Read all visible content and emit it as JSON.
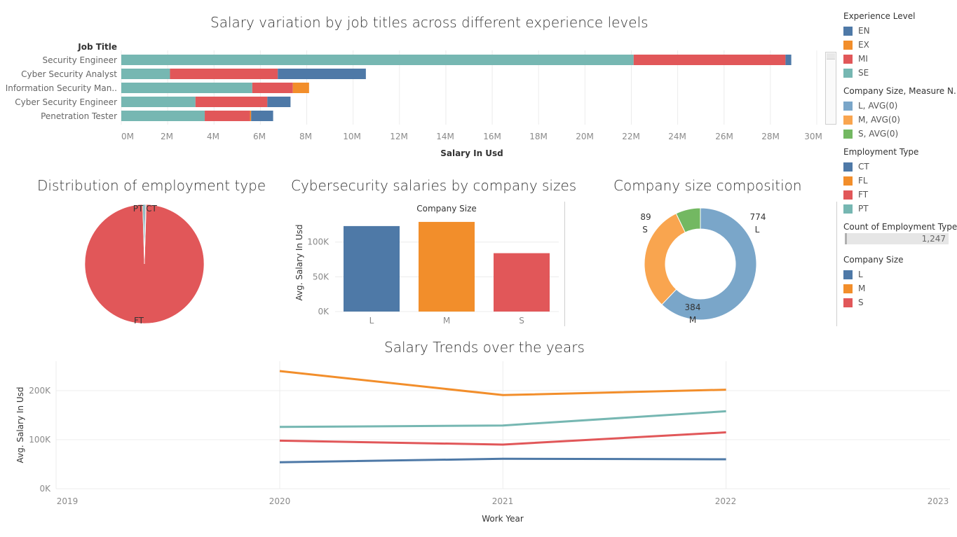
{
  "colors": {
    "EN": "#4e79a7",
    "EX": "#f28e2b",
    "MI": "#e15759",
    "SE": "#76b7b2",
    "company_L": "#7aa6c9",
    "company_M": "#f9a54f",
    "company_S": "#73b862",
    "grid": "#ececec"
  },
  "titles": {
    "salary_variation": "Salary variation by job titles across different experience levels",
    "employment_distribution": "Distribution of employment type",
    "company_salaries": "Cybersecurity salaries by company sizes",
    "company_composition": "Company size composition",
    "salary_trends": "Salary Trends over the years"
  },
  "legends": {
    "experience": {
      "title": "Experience Level",
      "items": [
        "EN",
        "EX",
        "MI",
        "SE"
      ]
    },
    "company_measure": {
      "title": "Company Size, Measure N..",
      "items": [
        "L, AVG(0)",
        "M, AVG(0)",
        "S, AVG(0)"
      ]
    },
    "employment": {
      "title": "Employment Type",
      "items": [
        "CT",
        "FL",
        "FT",
        "PT"
      ]
    },
    "count": {
      "title": "Count of Employment Type",
      "value": "1,247"
    },
    "company_size": {
      "title": "Company Size",
      "items": [
        "L",
        "M",
        "S"
      ]
    }
  },
  "chart_data": [
    {
      "id": "salary_variation",
      "type": "bar",
      "orientation": "horizontal",
      "stacked": true,
      "title": "Salary variation by job titles across different experience levels",
      "row_header": "Job Title",
      "xlabel": "Salary In Usd",
      "categories": [
        "Security Engineer",
        "Cyber Security Analyst",
        "Information Security Man..",
        "Cyber Security Engineer",
        "Penetration Tester"
      ],
      "series": [
        {
          "name": "SE",
          "values": [
            22100000,
            2100000,
            5650000,
            3200000,
            3600000
          ]
        },
        {
          "name": "MI",
          "values": [
            6550000,
            4650000,
            1750000,
            3100000,
            1950000
          ]
        },
        {
          "name": "EX",
          "values": [
            0,
            0,
            700000,
            0,
            50000
          ]
        },
        {
          "name": "EN",
          "values": [
            250000,
            3800000,
            0,
            1000000,
            950000
          ]
        }
      ],
      "xticks": [
        "0M",
        "2M",
        "4M",
        "6M",
        "8M",
        "10M",
        "12M",
        "14M",
        "16M",
        "18M",
        "20M",
        "22M",
        "24M",
        "26M",
        "28M",
        "30M"
      ],
      "xlim": [
        0,
        30000000
      ]
    },
    {
      "id": "employment_distribution",
      "type": "pie",
      "title": "Distribution of employment type",
      "labels": [
        "FT",
        "PT",
        "CT",
        "FL"
      ],
      "values": [
        1235,
        6,
        4,
        2
      ]
    },
    {
      "id": "company_salaries",
      "type": "bar",
      "title": "Cybersecurity salaries by company sizes",
      "header": "Company Size",
      "ylabel": "Avg. Salary In Usd",
      "categories": [
        "L",
        "M",
        "S"
      ],
      "values": [
        123000,
        129000,
        84000
      ],
      "yticks": [
        "0K",
        "50K",
        "100K"
      ],
      "ylim": [
        0,
        137000
      ]
    },
    {
      "id": "company_composition",
      "type": "pie",
      "donut": true,
      "title": "Company size composition",
      "labels": [
        "L",
        "M",
        "S"
      ],
      "values": [
        774,
        384,
        89
      ]
    },
    {
      "id": "salary_trends",
      "type": "line",
      "title": "Salary Trends over the years",
      "xlabel": "Work Year",
      "ylabel": "Avg. Salary In Usd",
      "x": [
        2020,
        2021,
        2022
      ],
      "series": [
        {
          "name": "EX",
          "values": [
            240000,
            191000,
            202000
          ]
        },
        {
          "name": "SE",
          "values": [
            126000,
            129000,
            158000
          ]
        },
        {
          "name": "MI",
          "values": [
            98000,
            90000,
            115000
          ]
        },
        {
          "name": "EN",
          "values": [
            54000,
            61000,
            60000
          ]
        }
      ],
      "xticks": [
        "2019",
        "2020",
        "2021",
        "2022",
        "2023"
      ],
      "xlim": [
        2019,
        2023
      ],
      "yticks": [
        "0K",
        "100K",
        "200K"
      ],
      "ylim": [
        0,
        260000
      ]
    }
  ]
}
